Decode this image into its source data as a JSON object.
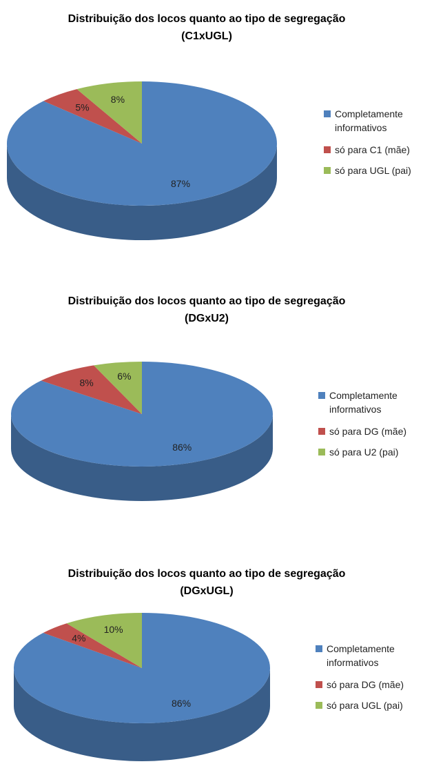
{
  "chart_data": [
    {
      "type": "pie",
      "title": [
        "Distribuição dos locos quanto ao tipo de segregação",
        "(C1xUGL)"
      ],
      "categories": [
        "Completamente informativos",
        "só para C1 (mãe)",
        "só para UGL (pai)"
      ],
      "values": [
        87,
        5,
        8
      ],
      "value_labels": [
        "87%",
        "5%",
        "8%"
      ],
      "colors": [
        "#4f81bd",
        "#c0504d",
        "#9bbb59"
      ],
      "legend": "right"
    },
    {
      "type": "pie",
      "title": [
        "Distribuição dos locos quanto ao tipo de segregação",
        "(DGxU2)"
      ],
      "categories": [
        "Completamente informativos",
        "só para DG (mãe)",
        "só para U2 (pai)"
      ],
      "values": [
        86,
        8,
        6
      ],
      "value_labels": [
        "86%",
        "8%",
        "6%"
      ],
      "colors": [
        "#4f81bd",
        "#c0504d",
        "#9bbb59"
      ],
      "legend": "right"
    },
    {
      "type": "pie",
      "title": [
        "Distribuição dos locos quanto ao tipo de segregação",
        "(DGxUGL)"
      ],
      "categories": [
        "Completamente informativos",
        "só para DG (mãe)",
        "só para UGL (pai)"
      ],
      "values": [
        86,
        4,
        10
      ],
      "value_labels": [
        "86%",
        "4%",
        "10%"
      ],
      "colors": [
        "#4f81bd",
        "#c0504d",
        "#9bbb59"
      ],
      "legend": "right"
    }
  ]
}
